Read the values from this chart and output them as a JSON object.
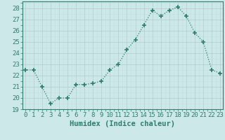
{
  "x": [
    0,
    1,
    2,
    3,
    4,
    5,
    6,
    7,
    8,
    9,
    10,
    11,
    12,
    13,
    14,
    15,
    16,
    17,
    18,
    19,
    20,
    21,
    22,
    23
  ],
  "y": [
    22.5,
    22.5,
    21.0,
    19.5,
    20.0,
    20.0,
    21.2,
    21.2,
    21.3,
    21.5,
    22.5,
    23.0,
    24.3,
    25.2,
    26.5,
    27.8,
    27.3,
    27.8,
    28.1,
    27.3,
    25.8,
    25.0,
    22.5,
    22.2
  ],
  "line_color": "#2e7d6e",
  "marker": "+",
  "marker_size": 4,
  "marker_lw": 1.2,
  "line_lw": 0.9,
  "bg_color": "#cce8e8",
  "grid_major_color": "#b0cccc",
  "grid_minor_color": "#c4dede",
  "text_color": "#2e7d6e",
  "xlabel": "Humidex (Indice chaleur)",
  "ylim": [
    19,
    28.6
  ],
  "yticks": [
    19,
    20,
    21,
    22,
    23,
    24,
    25,
    26,
    27,
    28
  ],
  "xticks": [
    0,
    1,
    2,
    3,
    4,
    5,
    6,
    7,
    8,
    9,
    10,
    11,
    12,
    13,
    14,
    15,
    16,
    17,
    18,
    19,
    20,
    21,
    22,
    23
  ],
  "tick_labels": [
    "0",
    "1",
    "2",
    "3",
    "4",
    "5",
    "6",
    "7",
    "8",
    "9",
    "10",
    "11",
    "12",
    "13",
    "14",
    "15",
    "16",
    "17",
    "18",
    "19",
    "20",
    "21",
    "22",
    "23"
  ],
  "axis_fontsize": 6.5,
  "label_fontsize": 7.5
}
